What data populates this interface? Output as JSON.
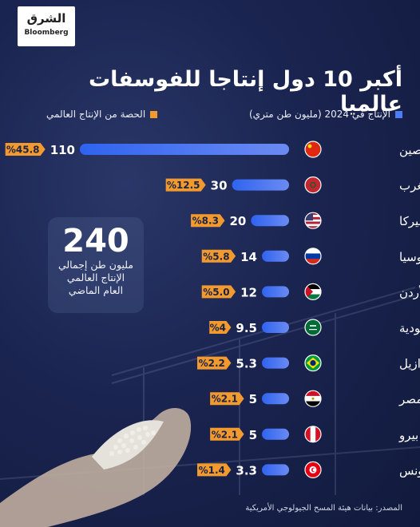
{
  "header": {
    "logo_arabic": "الشرق",
    "logo_english": "Bloomberg",
    "title": "أكبر 10 دول إنتاجا للفوسفات عالميا"
  },
  "legend": {
    "production": "الإنتاج في 2024 (مليون طن متري)",
    "share": "الحصة من الإنتاج العالمي"
  },
  "total_box": {
    "value": "240",
    "line1": "مليون طن إجمالي",
    "line2": "الإنتاج العالمي",
    "line3": "العام الماضي"
  },
  "source": "المصدر: بيانات هيئة المسح الجيولوجي الأمريكية",
  "colors": {
    "bar_start": "#2f63f0",
    "bar_end": "#6b8bf2",
    "share_badge": "#f29a2e",
    "legend_production": "#4d7cf5",
    "legend_share": "#f29a2e"
  },
  "chart_data": {
    "type": "bar",
    "orientation": "horizontal",
    "categories": [
      "الصين",
      "المغرب",
      "أميركا",
      "روسيا",
      "الأردن",
      "السعودية",
      "البرازيل",
      "مصر",
      "بيرو",
      "تونس"
    ],
    "flags": [
      "china-flag-icon",
      "morocco-flag-icon",
      "usa-flag-icon",
      "russia-flag-icon",
      "jordan-flag-icon",
      "saudi-flag-icon",
      "brazil-flag-icon",
      "egypt-flag-icon",
      "peru-flag-icon",
      "tunisia-flag-icon"
    ],
    "series": [
      {
        "values": [
          110,
          30,
          20,
          14,
          12,
          9.5,
          5.3,
          5,
          5,
          3.3
        ],
        "labels": [
          "110",
          "30",
          "20",
          "14",
          "12",
          "9.5",
          "5.3",
          "5",
          "5",
          "3.3"
        ]
      },
      {
        "values": [
          45.8,
          12.5,
          8.3,
          5.8,
          5.0,
          4,
          2.2,
          2.1,
          2.1,
          1.4
        ],
        "labels": [
          "%45.8",
          "%12.5",
          "%8.3",
          "%5.8",
          "%5.0",
          "%4",
          "%2.2",
          "%2.1",
          "%2.1",
          "%1.4"
        ]
      }
    ]
  }
}
